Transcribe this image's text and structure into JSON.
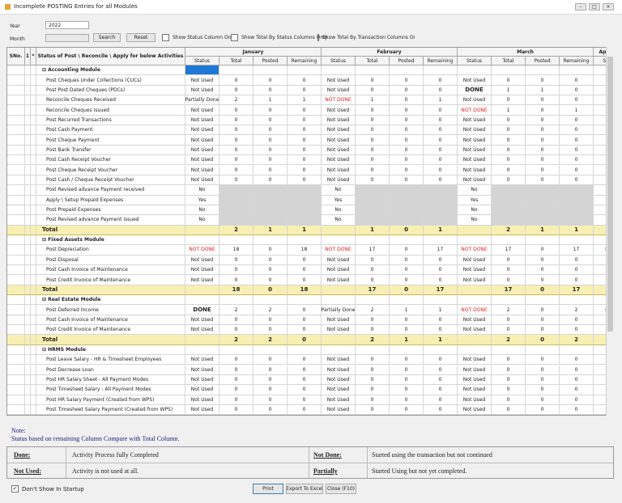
{
  "window": {
    "title": "Incomplete POSTING Entries for all Modules"
  },
  "filters": {
    "year_label": "Year",
    "year": "2022",
    "month_label": "Month",
    "search": "Search",
    "reset": "Reset",
    "checks": [
      "Show Status Column Only",
      "Show Total By Status Columns Only",
      "Show Total By Transaction Columns Only"
    ]
  },
  "grid": {
    "headers": {
      "sno": "SNo.",
      "col1": "1",
      "col2": "*",
      "activity": "Status of Post \\ Reconcile \\ Apply for below Activities",
      "months": [
        "January",
        "February",
        "March",
        "April"
      ],
      "sub": [
        "Status",
        "Total",
        "Posted",
        "Remaining"
      ],
      "april_sub": "St"
    },
    "groups": [
      {
        "name": "Accounting Module",
        "rows": [
          {
            "label": "Post Cheques Under Collections (CUCs)",
            "months": [
              {
                "status": "Not Used",
                "total": 0,
                "posted": 0,
                "remaining": 0
              },
              {
                "status": "Not Used",
                "total": 0,
                "posted": 0,
                "remaining": 0
              },
              {
                "status": "Not Used",
                "total": 0,
                "posted": 0,
                "remaining": 0
              }
            ],
            "april": "Not"
          },
          {
            "label": "Post Post Dated Cheques (PDCs)",
            "months": [
              {
                "status": "Not Used",
                "total": 0,
                "posted": 0,
                "remaining": 0
              },
              {
                "status": "Not Used",
                "total": 0,
                "posted": 0,
                "remaining": 0
              },
              {
                "status": "DONE",
                "bold": true,
                "total": 1,
                "posted": 1,
                "remaining": 0
              }
            ],
            "april": "Not"
          },
          {
            "label": "Reconcile Cheques Received",
            "months": [
              {
                "status": "Partially Done",
                "total": 2,
                "posted": 1,
                "remaining": 1
              },
              {
                "status": "NOT DONE",
                "color": "#e02020",
                "total": 1,
                "posted": 0,
                "remaining": 1
              },
              {
                "status": "Not Used",
                "total": 0,
                "posted": 0,
                "remaining": 0
              }
            ],
            "april": "Not"
          },
          {
            "label": "Reconcile Cheques Issued",
            "months": [
              {
                "status": "Not Used",
                "total": 0,
                "posted": 0,
                "remaining": 0
              },
              {
                "status": "Not Used",
                "total": 0,
                "posted": 0,
                "remaining": 0
              },
              {
                "status": "NOT DONE",
                "color": "#e02020",
                "total": 1,
                "posted": 0,
                "remaining": 1
              }
            ],
            "april": "Not"
          },
          {
            "label": "Post Recurred Transactions",
            "months": [
              {
                "status": "Not Used",
                "total": 0,
                "posted": 0,
                "remaining": 0
              },
              {
                "status": "Not Used",
                "total": 0,
                "posted": 0,
                "remaining": 0
              },
              {
                "status": "Not Used",
                "total": 0,
                "posted": 0,
                "remaining": 0
              }
            ],
            "april": "Not"
          },
          {
            "label": "Post Cash Payment",
            "months": [
              {
                "status": "Not Used",
                "total": 0,
                "posted": 0,
                "remaining": 0
              },
              {
                "status": "Not Used",
                "total": 0,
                "posted": 0,
                "remaining": 0
              },
              {
                "status": "Not Used",
                "total": 0,
                "posted": 0,
                "remaining": 0
              }
            ],
            "april": "DO",
            "april_bold": true
          },
          {
            "label": "Post Cheque Payment",
            "months": [
              {
                "status": "Not Used",
                "total": 0,
                "posted": 0,
                "remaining": 0
              },
              {
                "status": "Not Used",
                "total": 0,
                "posted": 0,
                "remaining": 0
              },
              {
                "status": "Not Used",
                "total": 0,
                "posted": 0,
                "remaining": 0
              }
            ],
            "april": "Not"
          },
          {
            "label": "Post Bank Transfer",
            "months": [
              {
                "status": "Not Used",
                "total": 0,
                "posted": 0,
                "remaining": 0
              },
              {
                "status": "Not Used",
                "total": 0,
                "posted": 0,
                "remaining": 0
              },
              {
                "status": "Not Used",
                "total": 0,
                "posted": 0,
                "remaining": 0
              }
            ],
            "april": "Not"
          },
          {
            "label": "Post Cash Receipt Voucher",
            "months": [
              {
                "status": "Not Used",
                "total": 0,
                "posted": 0,
                "remaining": 0
              },
              {
                "status": "Not Used",
                "total": 0,
                "posted": 0,
                "remaining": 0
              },
              {
                "status": "Not Used",
                "total": 0,
                "posted": 0,
                "remaining": 0
              }
            ],
            "april": "Not"
          },
          {
            "label": "Post Cheque Receipt Voucher",
            "months": [
              {
                "status": "Not Used",
                "total": 0,
                "posted": 0,
                "remaining": 0
              },
              {
                "status": "Not Used",
                "total": 0,
                "posted": 0,
                "remaining": 0
              },
              {
                "status": "Not Used",
                "total": 0,
                "posted": 0,
                "remaining": 0
              }
            ],
            "april": "Not"
          },
          {
            "label": "Post Cash / Cheque Receipt Voucher",
            "months": [
              {
                "status": "Not Used",
                "total": 0,
                "posted": 0,
                "remaining": 0
              },
              {
                "status": "Not Used",
                "total": 0,
                "posted": 0,
                "remaining": 0
              },
              {
                "status": "Not Used",
                "total": 0,
                "posted": 0,
                "remaining": 0
              }
            ],
            "april": "Not"
          },
          {
            "label": "Post Revised advance Payment received",
            "months": [
              {
                "status": "No"
              },
              {
                "status": "No"
              },
              {
                "status": "No"
              }
            ],
            "april": "N"
          },
          {
            "label": "Apply \\ Setup Prepaid Expenses",
            "months": [
              {
                "status": "Yes"
              },
              {
                "status": "Yes"
              },
              {
                "status": "Yes"
              }
            ],
            "april": "Y"
          },
          {
            "label": "Post Prepaid Expenses",
            "months": [
              {
                "status": "No"
              },
              {
                "status": "No"
              },
              {
                "status": "No"
              }
            ],
            "april": "N"
          },
          {
            "label": "Post Revised advance Payment issued",
            "months": [
              {
                "status": "No"
              },
              {
                "status": "No"
              },
              {
                "status": "No"
              }
            ],
            "april": "N"
          }
        ],
        "total": {
          "label": "Total",
          "months": [
            {
              "total": 2,
              "posted": 1,
              "remaining": 1
            },
            {
              "total": 1,
              "posted": 0,
              "remaining": 1
            },
            {
              "total": 2,
              "posted": 1,
              "remaining": 1
            }
          ]
        }
      },
      {
        "name": "Fixed Assets Module",
        "rows": [
          {
            "label": "Post Depreciation",
            "months": [
              {
                "status": "NOT DONE",
                "color": "#e02020",
                "total": 18,
                "posted": 0,
                "remaining": 18
              },
              {
                "status": "NOT DONE",
                "color": "#e02020",
                "total": 17,
                "posted": 0,
                "remaining": 17
              },
              {
                "status": "NOT DONE",
                "color": "#e02020",
                "total": 17,
                "posted": 0,
                "remaining": 17
              }
            ],
            "april": "NOT",
            "april_color": "#e02020"
          },
          {
            "label": "Post Disposal",
            "months": [
              {
                "status": "Not Used",
                "total": 0,
                "posted": 0,
                "remaining": 0
              },
              {
                "status": "Not Used",
                "total": 0,
                "posted": 0,
                "remaining": 0
              },
              {
                "status": "Not Used",
                "total": 0,
                "posted": 0,
                "remaining": 0
              }
            ],
            "april": "Not"
          },
          {
            "label": "Post Cash Invoice of Maintenance",
            "months": [
              {
                "status": "Not Used",
                "total": 0,
                "posted": 0,
                "remaining": 0
              },
              {
                "status": "Not Used",
                "total": 0,
                "posted": 0,
                "remaining": 0
              },
              {
                "status": "Not Used",
                "total": 0,
                "posted": 0,
                "remaining": 0
              }
            ],
            "april": "Not"
          },
          {
            "label": "Post Credit Invoice of Maintenance",
            "months": [
              {
                "status": "Not Used",
                "total": 0,
                "posted": 0,
                "remaining": 0
              },
              {
                "status": "Not Used",
                "total": 0,
                "posted": 0,
                "remaining": 0
              },
              {
                "status": "Not Used",
                "total": 0,
                "posted": 0,
                "remaining": 0
              }
            ],
            "april": "Not"
          }
        ],
        "total": {
          "label": "Total",
          "months": [
            {
              "total": 18,
              "posted": 0,
              "remaining": 18
            },
            {
              "total": 17,
              "posted": 0,
              "remaining": 17
            },
            {
              "total": 17,
              "posted": 0,
              "remaining": 17
            }
          ]
        }
      },
      {
        "name": "Real Estate Module",
        "rows": [
          {
            "label": "Post Deferred Income",
            "months": [
              {
                "status": "DONE",
                "bold": true,
                "total": 2,
                "posted": 2,
                "remaining": 0
              },
              {
                "status": "Partially Done",
                "total": 2,
                "posted": 1,
                "remaining": 1
              },
              {
                "status": "NOT DONE",
                "color": "#e02020",
                "total": 2,
                "posted": 0,
                "remaining": 2
              }
            ],
            "april": "NOT",
            "april_color": "#e02020"
          },
          {
            "label": "Post Cash Invoice of Maintenance",
            "months": [
              {
                "status": "Not Used",
                "total": 0,
                "posted": 0,
                "remaining": 0
              },
              {
                "status": "Not Used",
                "total": 0,
                "posted": 0,
                "remaining": 0
              },
              {
                "status": "Not Used",
                "total": 0,
                "posted": 0,
                "remaining": 0
              }
            ],
            "april": "Not"
          },
          {
            "label": "Post Credit Invoice of Maintenance",
            "months": [
              {
                "status": "Not Used",
                "total": 0,
                "posted": 0,
                "remaining": 0
              },
              {
                "status": "Not Used",
                "total": 0,
                "posted": 0,
                "remaining": 0
              },
              {
                "status": "Not Used",
                "total": 0,
                "posted": 0,
                "remaining": 0
              }
            ],
            "april": "Not"
          }
        ],
        "total": {
          "label": "Total",
          "months": [
            {
              "total": 2,
              "posted": 2,
              "remaining": 0
            },
            {
              "total": 2,
              "posted": 1,
              "remaining": 1
            },
            {
              "total": 2,
              "posted": 0,
              "remaining": 2
            }
          ]
        }
      },
      {
        "name": "HRMS Module",
        "rows": [
          {
            "label": "Post Leave Salary - HR & Timesheet Employees",
            "months": [
              {
                "status": "Not Used",
                "total": 0,
                "posted": 0,
                "remaining": 0
              },
              {
                "status": "Not Used",
                "total": 0,
                "posted": 0,
                "remaining": 0
              },
              {
                "status": "Not Used",
                "total": 0,
                "posted": 0,
                "remaining": 0
              }
            ],
            "april": "Not"
          },
          {
            "label": "Post Decrease Loan",
            "months": [
              {
                "status": "Not Used",
                "total": 0,
                "posted": 0,
                "remaining": 0
              },
              {
                "status": "Not Used",
                "total": 0,
                "posted": 0,
                "remaining": 0
              },
              {
                "status": "Not Used",
                "total": 0,
                "posted": 0,
                "remaining": 0
              }
            ],
            "april": "Not"
          },
          {
            "label": "Post HR Salary Sheet - All Payment Modes",
            "months": [
              {
                "status": "Not Used",
                "total": 0,
                "posted": 0,
                "remaining": 0
              },
              {
                "status": "Not Used",
                "total": 0,
                "posted": 0,
                "remaining": 0
              },
              {
                "status": "Not Used",
                "total": 0,
                "posted": 0,
                "remaining": 0
              }
            ],
            "april": "Not"
          },
          {
            "label": "Post Timesheet Salary - All Payment Modes",
            "months": [
              {
                "status": "Not Used",
                "total": 0,
                "posted": 0,
                "remaining": 0
              },
              {
                "status": "Not Used",
                "total": 0,
                "posted": 0,
                "remaining": 0
              },
              {
                "status": "Not Used",
                "total": 0,
                "posted": 0,
                "remaining": 0
              }
            ],
            "april": "Not"
          },
          {
            "label": "Post HR Salary Payment (Created from WPS)",
            "months": [
              {
                "status": "Not Used",
                "total": 0,
                "posted": 0,
                "remaining": 0
              },
              {
                "status": "Not Used",
                "total": 0,
                "posted": 0,
                "remaining": 0
              },
              {
                "status": "Not Used",
                "total": 0,
                "posted": 0,
                "remaining": 0
              }
            ],
            "april": "Not"
          },
          {
            "label": "Post Timesheet Salary Payment (Created from WPS)",
            "months": [
              {
                "status": "Not Used",
                "total": 0,
                "posted": 0,
                "remaining": 0
              },
              {
                "status": "Not Used",
                "total": 0,
                "posted": 0,
                "remaining": 0
              },
              {
                "status": "Not Used",
                "total": 0,
                "posted": 0,
                "remaining": 0
              }
            ],
            "april": "No"
          }
        ]
      }
    ]
  },
  "note": {
    "title": "Note:",
    "text": "Status based on remaining Column Compare with Total Column."
  },
  "legend": [
    {
      "term": "Done:",
      "desc": "Activity Process fully Completed"
    },
    {
      "term": "Not Done:",
      "desc": "Started using the transaction but not continued"
    },
    {
      "term": "Not Used:",
      "desc": "Activity is not used at all."
    },
    {
      "term": "Partially",
      "desc": "Started Using but not yet completed."
    }
  ],
  "footer": {
    "startup": "Don't Show In Startup",
    "print": "Print",
    "export": "Export To Excel",
    "close": "Close (F10)"
  }
}
